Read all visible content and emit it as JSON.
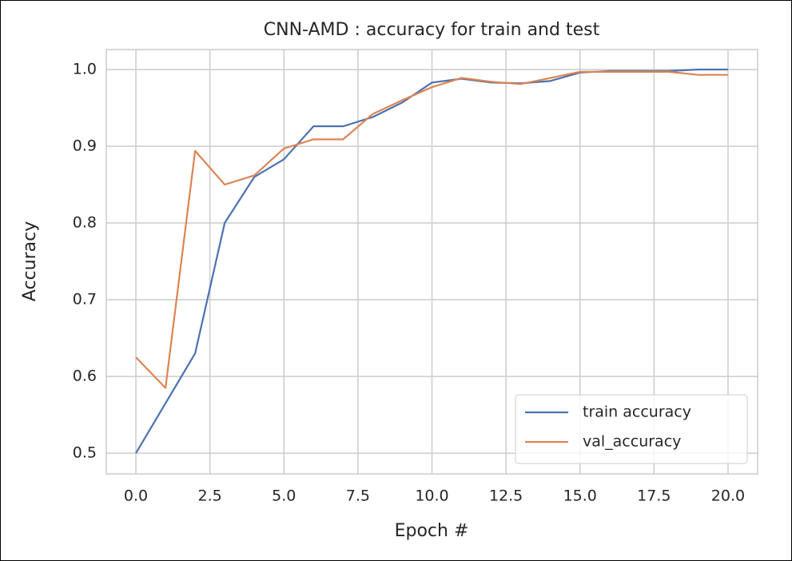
{
  "chart_data": {
    "type": "line",
    "title": "CNN-AMD : accuracy for train and test",
    "xlabel": "Epoch #",
    "ylabel": "Accuracy",
    "x": [
      0,
      1,
      2,
      3,
      4,
      5,
      6,
      7,
      8,
      9,
      10,
      11,
      12,
      13,
      14,
      15,
      16,
      17,
      18,
      19,
      20
    ],
    "series": [
      {
        "name": "train accuracy",
        "color": "#4c72b0",
        "values": [
          0.5,
          0.565,
          0.63,
          0.8,
          0.86,
          0.883,
          0.926,
          0.926,
          0.938,
          0.957,
          0.983,
          0.988,
          0.983,
          0.982,
          0.985,
          0.996,
          0.998,
          0.998,
          0.998,
          1.0,
          1.0
        ]
      },
      {
        "name": "val_accuracy",
        "color": "#dd8452",
        "values": [
          0.625,
          0.585,
          0.894,
          0.85,
          0.862,
          0.897,
          0.909,
          0.909,
          0.942,
          0.96,
          0.977,
          0.989,
          0.984,
          0.981,
          0.989,
          0.997,
          0.997,
          0.997,
          0.997,
          0.993,
          0.993
        ]
      }
    ],
    "xlim": [
      -1,
      21
    ],
    "xticks": [
      {
        "value": 0,
        "label": "0.0"
      },
      2.5,
      {
        "value": 5,
        "label": "5.0"
      },
      7.5,
      {
        "value": 10,
        "label": "10.0"
      },
      12.5,
      {
        "value": 15,
        "label": "15.0"
      },
      17.5,
      {
        "value": 20,
        "label": "20.0"
      }
    ],
    "ylim": [
      0.473,
      1.026
    ],
    "yticks": [
      0.5,
      0.6,
      0.7,
      0.8,
      0.9,
      {
        "value": 1.0,
        "label": "1.0"
      }
    ],
    "grid": true,
    "legend": "lower right"
  }
}
